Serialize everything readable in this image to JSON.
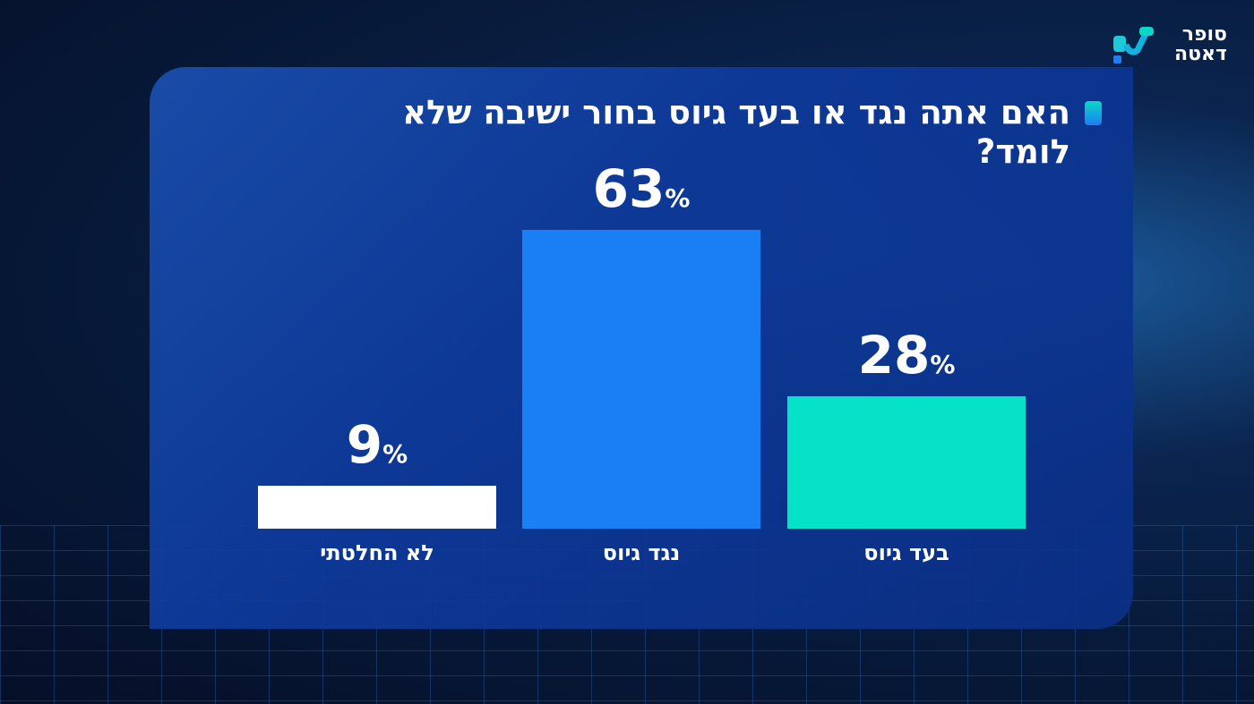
{
  "logo": {
    "line1": "סופר",
    "line2": "דאטה"
  },
  "chart_data": {
    "type": "bar",
    "title": "האם אתה נגד או בעד גיוס בחור ישיבה שלא לומד?",
    "categories": [
      "בעד גיוס",
      "נגד גיוס",
      "לא החלטתי"
    ],
    "values": [
      28,
      63,
      9
    ],
    "value_suffix": "%",
    "colors": [
      "#05e2c8",
      "#1a7ef5",
      "#ffffff"
    ],
    "grid": false,
    "direction": "rtl"
  }
}
